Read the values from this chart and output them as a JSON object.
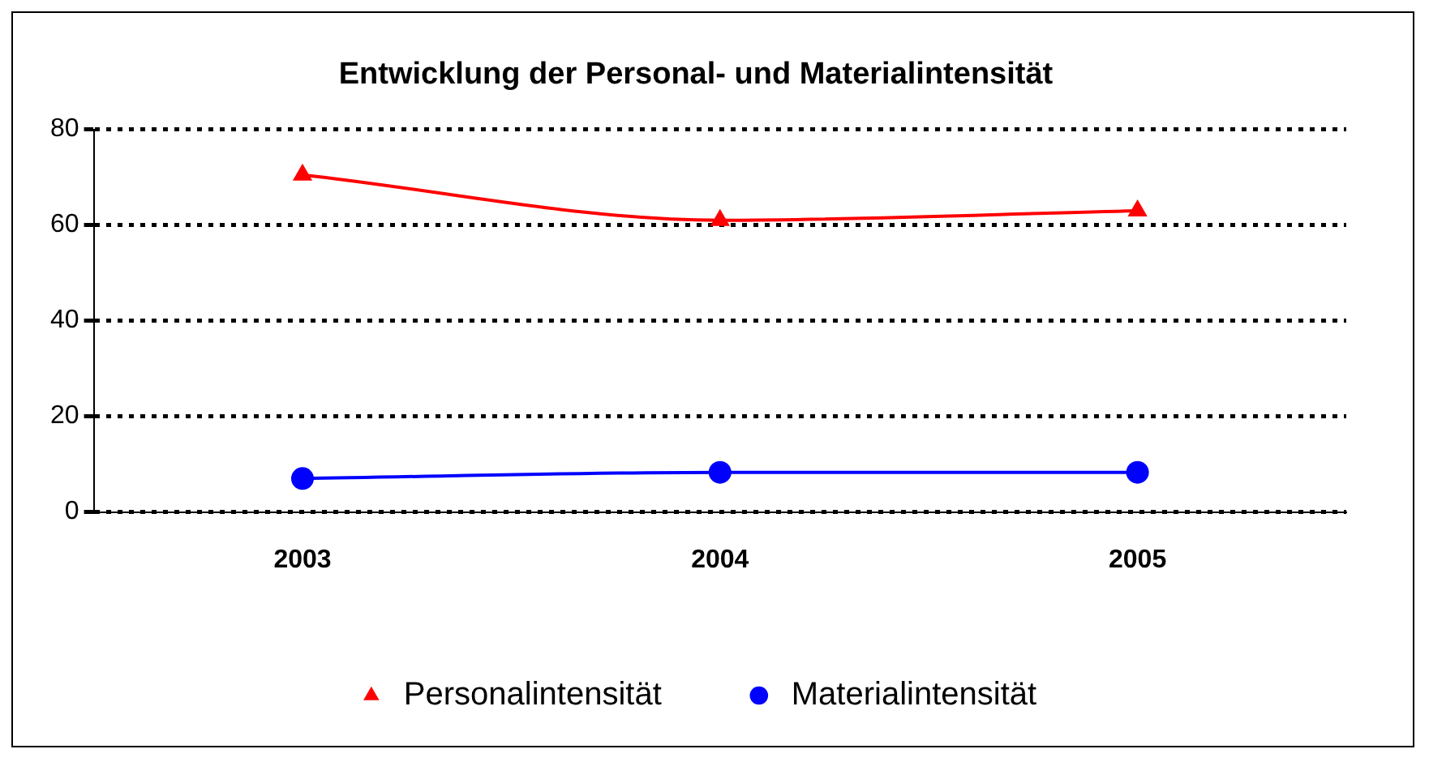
{
  "chart_data": {
    "type": "line",
    "title": "Entwicklung der Personal- und Materialintensität",
    "categories": [
      "2003",
      "2004",
      "2005"
    ],
    "series": [
      {
        "name": "Personalintensität",
        "color": "#ff0000",
        "values": [
          70.5,
          61,
          63
        ],
        "marker": "triangle"
      },
      {
        "name": "Materialintensität",
        "color": "#0000ff",
        "values": [
          7,
          8.3,
          8.3
        ],
        "marker": "circle"
      }
    ],
    "ylim": [
      0,
      80
    ],
    "yticks": [
      0,
      20,
      40,
      60,
      80
    ],
    "grid": "y",
    "legend": "bottom",
    "line_style": "solid"
  }
}
